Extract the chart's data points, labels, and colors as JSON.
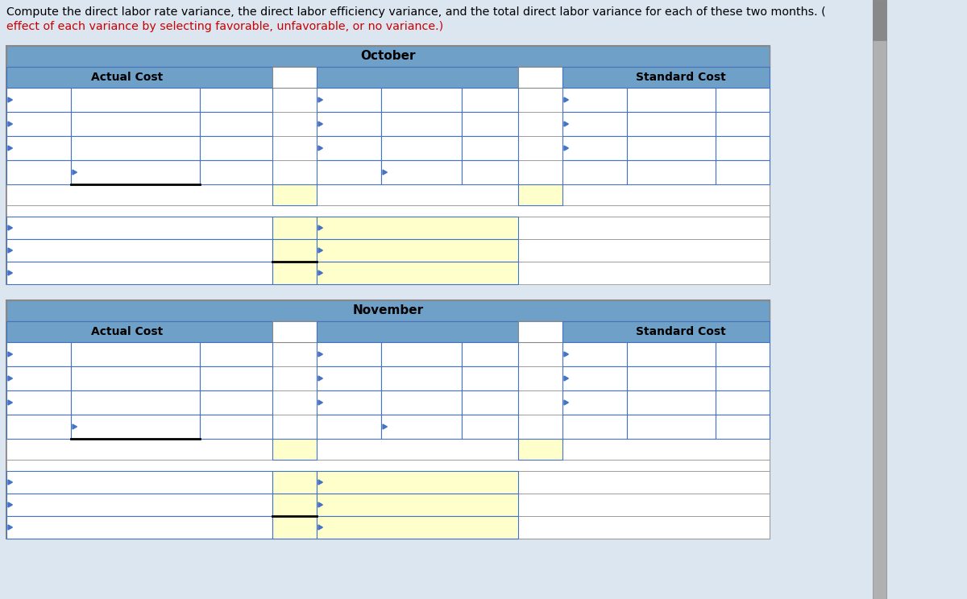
{
  "title_text": "Compute the direct labor rate variance, the direct labor efficiency variance, and the total direct labor variance for each of these two months. (",
  "subtitle_text": "effect of each variance by selecting favorable, unfavorable, or no variance.)",
  "header_bg": "#6fa0c8",
  "yellow_bg": "#ffffcc",
  "white_bg": "#ffffff",
  "cell_border": "#4472c4",
  "title_bg": "#dce6f1",
  "outer_border": "#888888",
  "october_label": "October",
  "november_label": "November",
  "actual_cost_label": "Actual Cost",
  "standard_cost_label": "Standard Cost",
  "fig_width": 12.0,
  "fig_height": 7.44,
  "scrollbar_gray": "#b0b0b0",
  "scrollbar_dark": "#888888"
}
